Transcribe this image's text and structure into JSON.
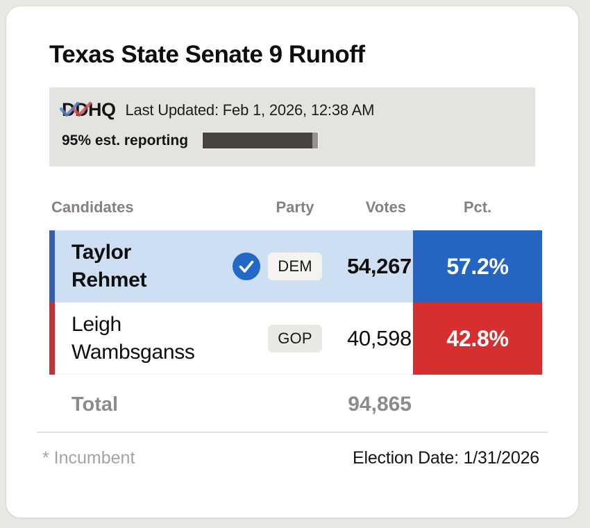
{
  "page": {
    "title": "Texas State Senate 9 Runoff"
  },
  "status": {
    "logo_text": "DDHQ",
    "last_updated": "Last Updated: Feb 1, 2026, 12:38 AM",
    "reporting_label": "95% est. reporting",
    "reporting_pct": 95,
    "progress_fill_color": "#474340",
    "progress_track_color": "#96938f"
  },
  "table": {
    "headers": {
      "candidates": "Candidates",
      "party": "Party",
      "votes": "Votes",
      "pct": "Pct."
    },
    "rows": [
      {
        "name": "Taylor Rehmet",
        "party": "DEM",
        "votes": "54,267",
        "pct": "57.2%",
        "winner": true,
        "row_bg": "#cfdff3",
        "stripe_color": "#3b5fad",
        "pct_bg": "#2465c2",
        "check_color": "#2268c8"
      },
      {
        "name": "Leigh Wambsganss",
        "party": "GOP",
        "votes": "40,598",
        "pct": "42.8%",
        "winner": false,
        "row_bg": "#ffffff",
        "stripe_color": "#c13538",
        "pct_bg": "#d62f2f"
      }
    ],
    "total_label": "Total",
    "total_votes": "94,865"
  },
  "footer": {
    "incumbent_note": "* Incumbent",
    "election_date": "Election Date: 1/31/2026"
  }
}
